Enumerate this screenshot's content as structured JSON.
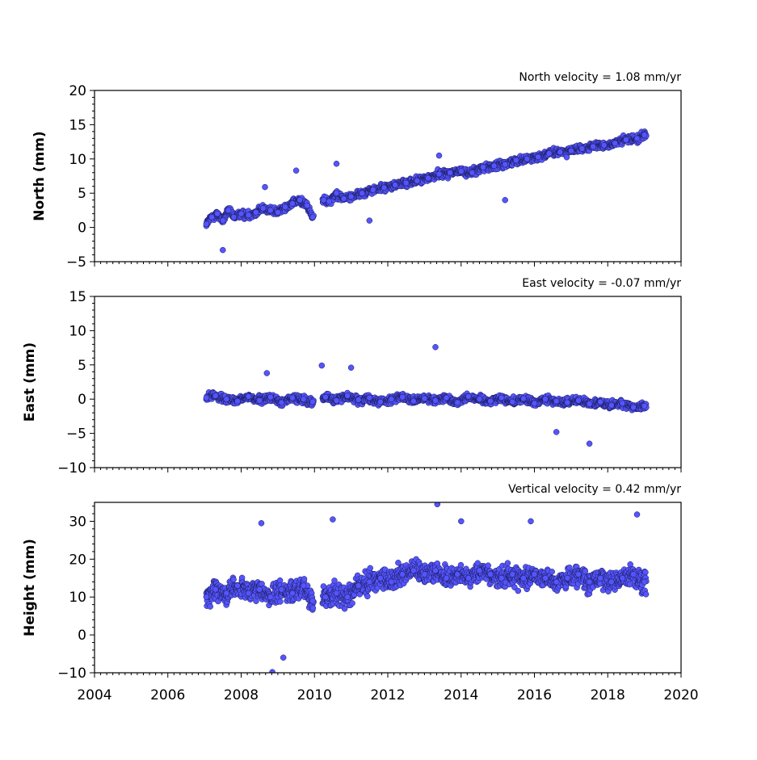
{
  "chart_data": [
    {
      "type": "scatter",
      "title": "North velocity = 1.08 mm/yr",
      "ylabel": "North (mm)",
      "xlim": [
        2004,
        2020
      ],
      "ylim": [
        -5,
        20
      ],
      "yticks": [
        -5,
        0,
        5,
        10,
        15,
        20
      ],
      "xticks": [
        2004,
        2006,
        2008,
        2010,
        2012,
        2014,
        2016,
        2018,
        2020
      ],
      "x_tick_labels_shown": false,
      "marker_color": "#5555ff",
      "edge_color": "#1a1a5a",
      "series": [
        {
          "x": [
            2007.05,
            2007.2,
            2007.35,
            2007.5,
            2007.65,
            2007.8,
            2008.0,
            2008.2,
            2008.4,
            2008.6,
            2008.8,
            2009.0,
            2009.2,
            2009.4,
            2009.6,
            2009.8,
            2009.95,
            2010.25,
            2010.4,
            2010.6,
            2010.8,
            2011.0,
            2011.3,
            2011.6,
            2011.9,
            2012.2,
            2012.5,
            2012.8,
            2013.1,
            2013.4,
            2013.7,
            2014.0,
            2014.3,
            2014.6,
            2014.9,
            2015.2,
            2015.5,
            2015.8,
            2016.1,
            2016.4,
            2016.7,
            2017.0,
            2017.3,
            2017.6,
            2017.9,
            2018.2,
            2018.5,
            2018.8,
            2019.0,
            2007.5,
            2008.65,
            2009.5,
            2010.6,
            2011.5,
            2013.4,
            2015.2
          ],
          "y": [
            0.5,
            1.5,
            2.0,
            1.0,
            2.5,
            1.5,
            2.0,
            1.8,
            2.2,
            2.8,
            2.5,
            2.2,
            3.0,
            3.5,
            4.0,
            3.2,
            1.5,
            4.0,
            3.8,
            5.0,
            4.2,
            4.5,
            5.0,
            5.5,
            5.8,
            6.2,
            6.5,
            6.8,
            7.2,
            7.8,
            8.0,
            8.2,
            8.0,
            8.8,
            9.0,
            9.2,
            9.8,
            10.0,
            10.3,
            10.8,
            11.0,
            11.2,
            11.5,
            11.8,
            12.0,
            12.3,
            12.8,
            13.0,
            13.5,
            -3.3,
            5.9,
            8.3,
            9.3,
            1.0,
            10.5,
            4.0
          ]
        }
      ]
    },
    {
      "type": "scatter",
      "title": "East velocity = -0.07 mm/yr",
      "ylabel": "East (mm)",
      "xlim": [
        2004,
        2020
      ],
      "ylim": [
        -10,
        15
      ],
      "yticks": [
        -10,
        -5,
        0,
        5,
        10,
        15
      ],
      "xticks": [
        2004,
        2006,
        2008,
        2010,
        2012,
        2014,
        2016,
        2018,
        2020
      ],
      "x_tick_labels_shown": false,
      "marker_color": "#5555ff",
      "edge_color": "#1a1a5a",
      "series": [
        {
          "x": [
            2007.05,
            2007.3,
            2007.6,
            2007.9,
            2008.2,
            2008.5,
            2008.8,
            2009.1,
            2009.4,
            2009.7,
            2009.95,
            2010.3,
            2010.6,
            2010.9,
            2011.2,
            2011.5,
            2011.8,
            2012.1,
            2012.4,
            2012.7,
            2013.0,
            2013.3,
            2013.6,
            2013.9,
            2014.2,
            2014.5,
            2014.8,
            2015.1,
            2015.4,
            2015.7,
            2016.0,
            2016.3,
            2016.6,
            2016.9,
            2017.2,
            2017.5,
            2017.8,
            2018.1,
            2018.4,
            2018.7,
            2019.0,
            2013.3,
            2010.2,
            2011.0,
            2008.7,
            2017.5,
            2016.6
          ],
          "y": [
            0.2,
            0.5,
            0.0,
            -0.3,
            0.4,
            -0.2,
            0.3,
            -0.5,
            0.2,
            0.0,
            -0.4,
            0.3,
            -0.2,
            0.5,
            -0.1,
            0.2,
            -0.4,
            0.0,
            0.3,
            -0.3,
            0.1,
            -0.2,
            0.2,
            -0.5,
            0.4,
            0.0,
            -0.3,
            0.2,
            -0.4,
            0.1,
            -0.6,
            0.0,
            -0.3,
            -0.5,
            -0.2,
            -0.7,
            -0.4,
            -0.9,
            -0.6,
            -1.2,
            -1.0,
            7.6,
            4.9,
            4.6,
            3.8,
            -6.5,
            -4.8
          ]
        }
      ]
    },
    {
      "type": "scatter",
      "title": "Vertical velocity = 0.42 mm/yr",
      "ylabel": "Height (mm)",
      "xlim": [
        2004,
        2020
      ],
      "ylim": [
        -10,
        35
      ],
      "yticks": [
        -10,
        0,
        10,
        20,
        30
      ],
      "xticks": [
        2004,
        2006,
        2008,
        2010,
        2012,
        2014,
        2016,
        2018,
        2020
      ],
      "x_tick_labels_shown": true,
      "marker_color": "#5555ff",
      "edge_color": "#1a1a5a",
      "series": [
        {
          "x": [
            2007.05,
            2007.3,
            2007.6,
            2007.9,
            2008.2,
            2008.5,
            2008.8,
            2009.1,
            2009.4,
            2009.7,
            2009.95,
            2010.3,
            2010.6,
            2010.9,
            2011.2,
            2011.5,
            2011.8,
            2012.1,
            2012.4,
            2012.7,
            2013.0,
            2013.3,
            2013.6,
            2013.9,
            2014.2,
            2014.5,
            2014.8,
            2015.1,
            2015.4,
            2015.7,
            2016.0,
            2016.3,
            2016.6,
            2016.9,
            2017.2,
            2017.5,
            2017.8,
            2018.1,
            2018.4,
            2018.7,
            2019.0,
            2013.35,
            2010.5,
            2008.55,
            2008.85,
            2009.15,
            2018.8,
            2014.0,
            2015.9
          ],
          "y": [
            10,
            12,
            11,
            13,
            11,
            12,
            10,
            12,
            11,
            13,
            9,
            10,
            11,
            10,
            13,
            14,
            15,
            14,
            16,
            17,
            16,
            17,
            15,
            16,
            15,
            17,
            16,
            15,
            16,
            15,
            16,
            15,
            14,
            15,
            16,
            14,
            15,
            14,
            15,
            16,
            14,
            34.5,
            30.5,
            29.5,
            -9.8,
            -6.0,
            31.8,
            30.0,
            30.0
          ]
        }
      ]
    }
  ]
}
